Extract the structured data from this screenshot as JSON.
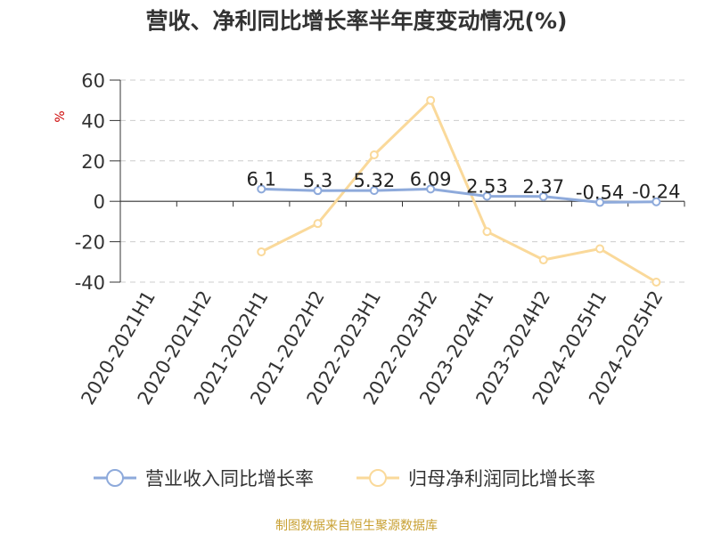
{
  "chart_data": {
    "type": "line",
    "title": "营收、净利同比增长率半年度变动情况(%)",
    "ylabel": "%",
    "xlabel": "",
    "ylim": [
      -40,
      60
    ],
    "yticks": [
      60,
      40,
      20,
      0,
      -20,
      -40
    ],
    "ytick_labels": [
      "60",
      "40",
      "20",
      "0",
      "-20",
      "-40"
    ],
    "categories": [
      "2020-2021H1",
      "2020-2021H2",
      "2021-2022H1",
      "2021-2022H2",
      "2022-2023H1",
      "2022-2023H2",
      "2023-2024H1",
      "2023-2024H2",
      "2024-2025H1",
      "2024-2025H2"
    ],
    "grid": true,
    "legend_position": "bottom",
    "series": [
      {
        "name": "营业收入同比增长率",
        "color": "#8eaadb",
        "values": [
          null,
          null,
          6.1,
          5.3,
          5.32,
          6.09,
          2.53,
          2.37,
          -0.54,
          -0.24
        ],
        "labels": [
          "",
          "",
          "6.1",
          "5.3",
          "5.32",
          "6.09",
          "2.53",
          "2.37",
          "-0.54",
          "-0.24"
        ]
      },
      {
        "name": "归母净利润同比增长率",
        "color": "#fad99a",
        "values": [
          null,
          null,
          -25,
          -11,
          23,
          50,
          -15,
          -29,
          -23.5,
          -40
        ]
      }
    ]
  },
  "source": "制图数据来自恒生聚源数据库"
}
